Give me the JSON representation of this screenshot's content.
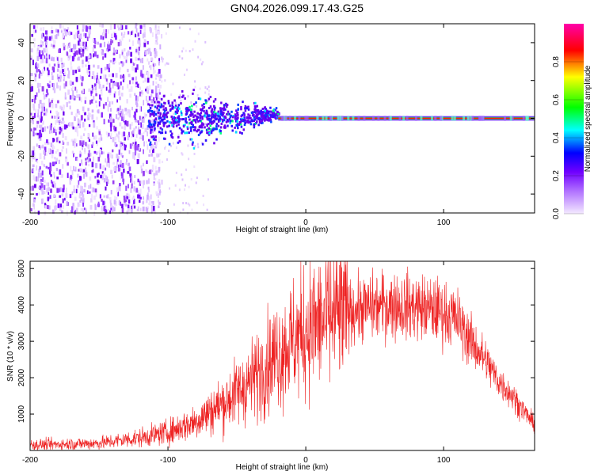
{
  "title": "GN04.2026.099.17.43.G25",
  "chart_data": [
    {
      "type": "heatmap",
      "xlabel": "Height of straight line (km)",
      "ylabel": "Frequency (Hz)",
      "xlim": [
        -200,
        166
      ],
      "ylim": [
        -50,
        50
      ],
      "xticks": [
        "-200",
        "-100",
        "0",
        "100"
      ],
      "yticks": [
        "-40",
        "-20",
        "0",
        "20",
        "40"
      ],
      "colorbar": {
        "label": "Normalized spectral amplitude",
        "range": [
          0,
          1
        ],
        "ticks": [
          "0.0",
          "0.2",
          "0.4",
          "0.6",
          "0.8"
        ],
        "colors": [
          "#f0e0ff",
          "#8800ff",
          "#0000ff",
          "#00ffff",
          "#00ff00",
          "#ffff00",
          "#ff0000",
          "#ff00aa"
        ]
      },
      "description_features": {
        "noise_region_x": [
          -200,
          -110
        ],
        "transition_region_x": [
          -110,
          -20
        ],
        "clean_tone_region_x": [
          -20,
          166
        ],
        "tone_frequency": 0
      }
    },
    {
      "type": "line",
      "xlabel": "Height of straight line (km)",
      "ylabel": "SNR (10 * v/v)",
      "xlim": [
        -200,
        166
      ],
      "ylim": [
        0,
        5200
      ],
      "xticks": [
        "-200",
        "-100",
        "0",
        "100"
      ],
      "yticks": [
        "1000",
        "2000",
        "3000",
        "4000",
        "5000"
      ],
      "color": "#ee2222",
      "envelope": {
        "x": [
          -200,
          -150,
          -120,
          -100,
          -80,
          -60,
          -40,
          -20,
          0,
          20,
          40,
          60,
          80,
          100,
          110,
          120,
          130,
          140,
          150,
          166
        ],
        "y": [
          150,
          200,
          350,
          500,
          800,
          1300,
          1900,
          2700,
          3300,
          3700,
          3900,
          4000,
          3950,
          3800,
          3600,
          3000,
          2500,
          1900,
          1500,
          700
        ]
      }
    }
  ]
}
